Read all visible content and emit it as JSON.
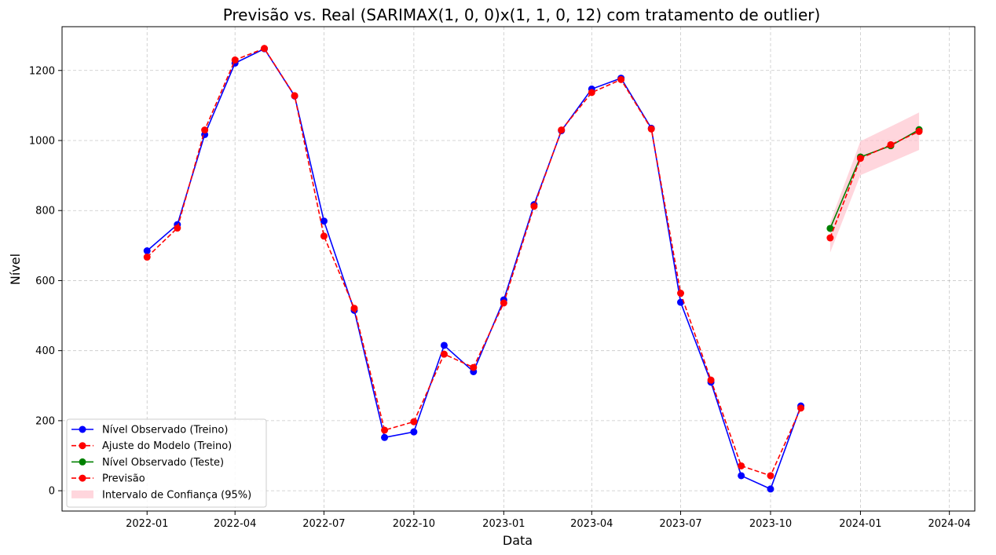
{
  "chart_data": {
    "type": "line",
    "title": "Previsão vs. Real (SARIMAX(1, 0, 0)x(1, 1, 0, 12) com tratamento de outlier)",
    "xlabel": "Data",
    "ylabel": "Nível",
    "xlim": [
      "2021-10-06",
      "2024-04-27"
    ],
    "ylim": [
      -58,
      1325
    ],
    "grid": true,
    "legend_position": "lower-left",
    "x_ticks": [
      "2022-01",
      "2022-04",
      "2022-07",
      "2022-10",
      "2023-01",
      "2023-04",
      "2023-07",
      "2023-10",
      "2024-01",
      "2024-04"
    ],
    "y_ticks": [
      0,
      200,
      400,
      600,
      800,
      1000,
      1200
    ],
    "series": [
      {
        "name": "Nível Observado (Treino)",
        "color": "#0000ff",
        "style": "solid",
        "marker": "circle",
        "x": [
          "2022-01-01",
          "2022-02-01",
          "2022-03-01",
          "2022-04-01",
          "2022-05-01",
          "2022-06-01",
          "2022-07-01",
          "2022-08-01",
          "2022-09-01",
          "2022-10-01",
          "2022-11-01",
          "2022-12-01",
          "2023-01-01",
          "2023-02-01",
          "2023-03-01",
          "2023-04-01",
          "2023-05-01",
          "2023-06-01",
          "2023-07-01",
          "2023-08-01",
          "2023-09-01",
          "2023-10-01",
          "2023-11-01"
        ],
        "y": [
          685,
          760,
          1017,
          1221,
          1262,
          1127,
          770,
          515,
          152,
          168,
          415,
          340,
          545,
          817,
          1028,
          1147,
          1178,
          1035,
          538,
          310,
          43,
          5,
          242
        ]
      },
      {
        "name": "Ajuste do Modelo (Treino)",
        "color": "#ff0000",
        "style": "dashed",
        "marker": "circle",
        "x": [
          "2022-01-01",
          "2022-02-01",
          "2022-03-01",
          "2022-04-01",
          "2022-05-01",
          "2022-06-01",
          "2022-07-01",
          "2022-08-01",
          "2022-09-01",
          "2022-10-01",
          "2022-11-01",
          "2022-12-01",
          "2023-01-01",
          "2023-02-01",
          "2023-03-01",
          "2023-04-01",
          "2023-05-01",
          "2023-06-01",
          "2023-07-01",
          "2023-08-01",
          "2023-09-01",
          "2023-10-01",
          "2023-11-01"
        ],
        "y": [
          667,
          750,
          1030,
          1230,
          1263,
          1128,
          727,
          521,
          173,
          197,
          390,
          352,
          536,
          812,
          1030,
          1137,
          1174,
          1033,
          564,
          316,
          71,
          43,
          236
        ]
      },
      {
        "name": "Nível Observado (Teste)",
        "color": "#008000",
        "style": "solid",
        "marker": "circle",
        "x": [
          "2023-12-01",
          "2024-01-01",
          "2024-02-01",
          "2024-03-01"
        ],
        "y": [
          749,
          953,
          985,
          1031
        ]
      },
      {
        "name": "Previsão",
        "color": "#ff0000",
        "style": "dashed",
        "marker": "circle",
        "x": [
          "2023-12-01",
          "2024-01-01",
          "2024-02-01",
          "2024-03-01"
        ],
        "y": [
          722,
          949,
          988,
          1026
        ]
      },
      {
        "name": "Intervalo de Confiança (95%)",
        "type": "band",
        "color": "#ffc0cb",
        "x": [
          "2023-12-01",
          "2024-01-01",
          "2024-02-01",
          "2024-03-01"
        ],
        "lower": [
          680,
          901,
          938,
          973
        ],
        "upper": [
          766,
          998,
          1040,
          1080
        ]
      }
    ]
  }
}
